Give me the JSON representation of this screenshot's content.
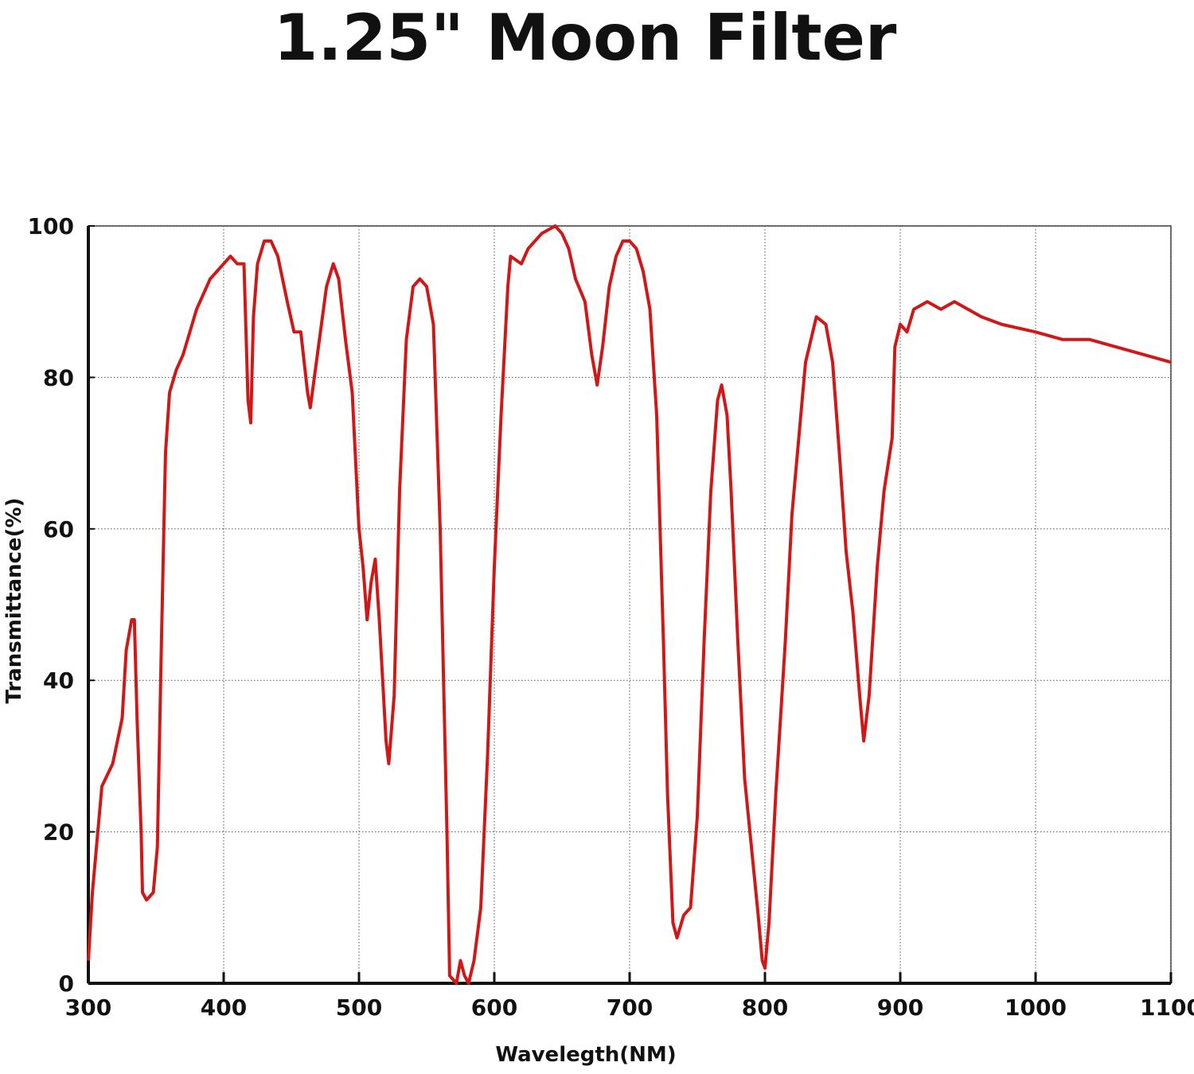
{
  "chart_data": {
    "type": "line",
    "title": "1.25\" Moon Filter",
    "x_label": "Wavelegth(NM)",
    "y_label": "Transmittance(%)",
    "xlim": [
      300,
      1100
    ],
    "xticks": [
      300,
      400,
      500,
      600,
      700,
      800,
      900,
      1000,
      1100
    ],
    "ylim": [
      0,
      100
    ],
    "yticks": [
      0,
      20,
      40,
      60,
      80,
      100
    ],
    "grid": true,
    "series": [
      {
        "name": "Transmittance",
        "color": "#d01818",
        "x": [
          300,
          303,
          307,
          310,
          318,
          325,
          328,
          332,
          334,
          336,
          339,
          340,
          343,
          348,
          351,
          354,
          357,
          360,
          365,
          370,
          380,
          390,
          400,
          405,
          410,
          415,
          418,
          420,
          422,
          425,
          430,
          435,
          440,
          447,
          452,
          457,
          462,
          464,
          470,
          476,
          481,
          485,
          490,
          495,
          500,
          503,
          506,
          509,
          512,
          515,
          520,
          522,
          526,
          530,
          535,
          540,
          545,
          550,
          555,
          560,
          565,
          567,
          572,
          575,
          578,
          581,
          585,
          590,
          595,
          600,
          605,
          610,
          612,
          620,
          625,
          635,
          645,
          650,
          655,
          660,
          667,
          672,
          676,
          680,
          685,
          690,
          695,
          700,
          705,
          710,
          715,
          720,
          725,
          728,
          732,
          735,
          740,
          745,
          750,
          755,
          760,
          765,
          768,
          772,
          775,
          780,
          785,
          790,
          795,
          798,
          800,
          803,
          808,
          815,
          820,
          830,
          838,
          845,
          850,
          855,
          860,
          865,
          870,
          873,
          877,
          883,
          888,
          894,
          896,
          900,
          905,
          910,
          920,
          930,
          940,
          950,
          960,
          975,
          1000,
          1020,
          1040,
          1060,
          1080,
          1100
        ],
        "values": [
          3,
          12,
          20,
          26,
          29,
          35,
          44,
          48,
          48,
          35,
          20,
          12,
          11,
          12,
          18,
          45,
          70,
          78,
          81,
          83,
          89,
          93,
          95,
          96,
          95,
          95,
          77,
          74,
          88,
          95,
          98,
          98,
          96,
          90,
          86,
          86,
          78,
          76,
          84,
          92,
          95,
          93,
          85,
          78,
          60,
          55,
          48,
          53,
          56,
          48,
          32,
          29,
          38,
          65,
          85,
          92,
          93,
          92,
          87,
          60,
          20,
          1,
          0,
          3,
          1,
          0,
          3,
          10,
          30,
          55,
          75,
          92,
          96,
          95,
          97,
          99,
          100,
          99,
          97,
          93,
          90,
          83,
          79,
          84,
          92,
          96,
          98,
          98,
          97,
          94,
          89,
          75,
          45,
          25,
          8,
          6,
          9,
          10,
          22,
          45,
          65,
          77,
          79,
          75,
          65,
          45,
          27,
          18,
          9,
          3,
          2,
          8,
          25,
          45,
          62,
          82,
          88,
          87,
          82,
          70,
          57,
          49,
          38,
          32,
          38,
          55,
          65,
          72,
          84,
          87,
          86,
          89,
          90,
          89,
          90,
          89,
          88,
          87,
          86,
          85,
          85,
          84,
          83,
          82
        ]
      }
    ]
  }
}
